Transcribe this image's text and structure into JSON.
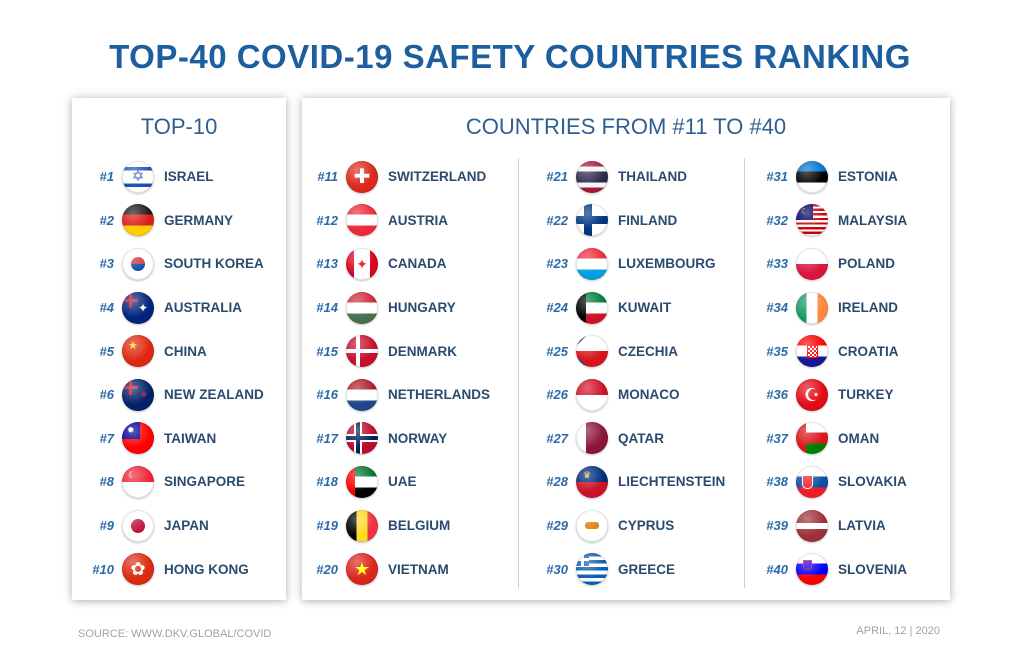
{
  "title": "TOP-40 COVID-19 SAFETY COUNTRIES RANKING",
  "left_panel": {
    "title": "TOP-10",
    "items": [
      {
        "rank": "#1",
        "name": "ISRAEL",
        "icon": "flag-israel-icon"
      },
      {
        "rank": "#2",
        "name": "GERMANY",
        "icon": "flag-germany-icon"
      },
      {
        "rank": "#3",
        "name": "SOUTH KOREA",
        "icon": "flag-south-korea-icon"
      },
      {
        "rank": "#4",
        "name": "AUSTRALIA",
        "icon": "flag-australia-icon"
      },
      {
        "rank": "#5",
        "name": "CHINA",
        "icon": "flag-china-icon"
      },
      {
        "rank": "#6",
        "name": "NEW ZEALAND",
        "icon": "flag-new-zealand-icon"
      },
      {
        "rank": "#7",
        "name": "TAIWAN",
        "icon": "flag-taiwan-icon"
      },
      {
        "rank": "#8",
        "name": "SINGAPORE",
        "icon": "flag-singapore-icon"
      },
      {
        "rank": "#9",
        "name": "JAPAN",
        "icon": "flag-japan-icon"
      },
      {
        "rank": "#10",
        "name": "HONG KONG",
        "icon": "flag-hong-kong-icon"
      }
    ]
  },
  "right_panel": {
    "title": "COUNTRIES FROM #11 TO #40",
    "columns": [
      [
        {
          "rank": "#11",
          "name": "SWITZERLAND",
          "icon": "flag-switzerland-icon"
        },
        {
          "rank": "#12",
          "name": "AUSTRIA",
          "icon": "flag-austria-icon"
        },
        {
          "rank": "#13",
          "name": "CANADA",
          "icon": "flag-canada-icon"
        },
        {
          "rank": "#14",
          "name": "HUNGARY",
          "icon": "flag-hungary-icon"
        },
        {
          "rank": "#15",
          "name": "DENMARK",
          "icon": "flag-denmark-icon"
        },
        {
          "rank": "#16",
          "name": "NETHERLANDS",
          "icon": "flag-netherlands-icon"
        },
        {
          "rank": "#17",
          "name": "NORWAY",
          "icon": "flag-norway-icon"
        },
        {
          "rank": "#18",
          "name": "UAE",
          "icon": "flag-uae-icon"
        },
        {
          "rank": "#19",
          "name": "BELGIUM",
          "icon": "flag-belgium-icon"
        },
        {
          "rank": "#20",
          "name": "VIETNAM",
          "icon": "flag-vietnam-icon"
        }
      ],
      [
        {
          "rank": "#21",
          "name": "THAILAND",
          "icon": "flag-thailand-icon"
        },
        {
          "rank": "#22",
          "name": "FINLAND",
          "icon": "flag-finland-icon"
        },
        {
          "rank": "#23",
          "name": "LUXEMBOURG",
          "icon": "flag-luxembourg-icon"
        },
        {
          "rank": "#24",
          "name": "KUWAIT",
          "icon": "flag-kuwait-icon"
        },
        {
          "rank": "#25",
          "name": "CZECHIA",
          "icon": "flag-czechia-icon"
        },
        {
          "rank": "#26",
          "name": "MONACO",
          "icon": "flag-monaco-icon"
        },
        {
          "rank": "#27",
          "name": "QATAR",
          "icon": "flag-qatar-icon"
        },
        {
          "rank": "#28",
          "name": "LIECHTENSTEIN",
          "icon": "flag-liechtenstein-icon"
        },
        {
          "rank": "#29",
          "name": "CYPRUS",
          "icon": "flag-cyprus-icon"
        },
        {
          "rank": "#30",
          "name": "GREECE",
          "icon": "flag-greece-icon"
        }
      ],
      [
        {
          "rank": "#31",
          "name": "ESTONIA",
          "icon": "flag-estonia-icon"
        },
        {
          "rank": "#32",
          "name": "MALAYSIA",
          "icon": "flag-malaysia-icon"
        },
        {
          "rank": "#33",
          "name": "POLAND",
          "icon": "flag-poland-icon"
        },
        {
          "rank": "#34",
          "name": "IRELAND",
          "icon": "flag-ireland-icon"
        },
        {
          "rank": "#35",
          "name": "CROATIA",
          "icon": "flag-croatia-icon"
        },
        {
          "rank": "#36",
          "name": "TURKEY",
          "icon": "flag-turkey-icon"
        },
        {
          "rank": "#37",
          "name": "OMAN",
          "icon": "flag-oman-icon"
        },
        {
          "rank": "#38",
          "name": "SLOVAKIA",
          "icon": "flag-slovakia-icon"
        },
        {
          "rank": "#39",
          "name": "LATVIA",
          "icon": "flag-latvia-icon"
        },
        {
          "rank": "#40",
          "name": "SLOVENIA",
          "icon": "flag-slovenia-icon"
        }
      ]
    ]
  },
  "footer": {
    "source": "SOURCE: WWW.DKV.GLOBAL/COVID",
    "date": "APRIL, 12 | 2020"
  },
  "colors": {
    "title": "#1d5e9e",
    "rank": "#2b6aa8",
    "country_text": "#2a4b6e"
  }
}
